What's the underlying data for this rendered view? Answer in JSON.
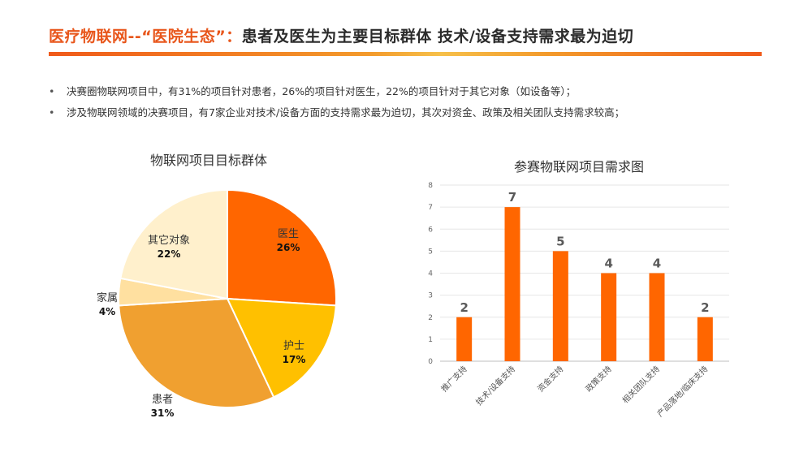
{
  "header": {
    "title_accent": "医疗物联网--“医院生态”：",
    "title_rest": "患者及医生为主要目标群体 技术/设备支持需求最为迫切"
  },
  "bullets": [
    "决赛圈物联网项目中，有31%的项目针对患者，26%的项目针对医生，22%的项目针对于其它对象（如设备等）；",
    "涉及物联网领域的决赛项目，有7家企业对技术/设备方面的支持需求最为迫切，其次对资金、政策及相关团队支持需求较高；"
  ],
  "chart_data": [
    {
      "type": "pie",
      "title": "物联网项目目标群体",
      "slices": [
        {
          "label": "医生",
          "value": 26,
          "display": "26%",
          "color": "#ff6600"
        },
        {
          "label": "护士",
          "value": 17,
          "display": "17%",
          "color": "#ffc000"
        },
        {
          "label": "患者",
          "value": 31,
          "display": "31%",
          "color": "#f0a030"
        },
        {
          "label": "家属",
          "value": 4,
          "display": "4%",
          "color": "#ffe0a0"
        },
        {
          "label": "其它对象",
          "value": 22,
          "display": "22%",
          "color": "#fff0cc"
        }
      ]
    },
    {
      "type": "bar",
      "title": "参赛物联网项目需求图",
      "categories": [
        "推广支持",
        "技术/设备支持",
        "资金支持",
        "政策支持",
        "相关团队支持",
        "产品落地/临床支持"
      ],
      "values": [
        2,
        7,
        5,
        4,
        4,
        2
      ],
      "ylim": [
        0,
        8
      ],
      "yticks": [
        0,
        1,
        2,
        3,
        4,
        5,
        6,
        7,
        8
      ],
      "color": "#ff6600",
      "grid": true
    }
  ]
}
